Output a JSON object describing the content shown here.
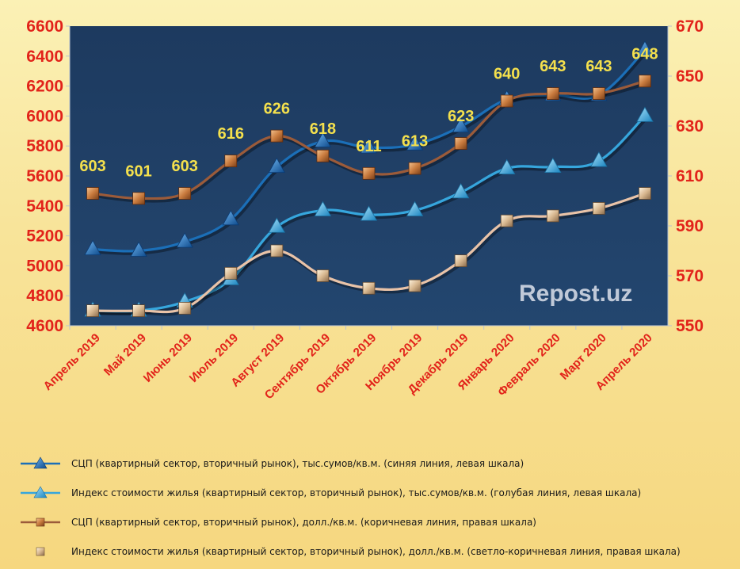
{
  "chart_data": {
    "type": "line",
    "categories": [
      "Апрель 2019",
      "Май 2019",
      "Июнь 2019",
      "Июль 2019",
      "Август 2019",
      "Сентябрь 2019",
      "Октябрь 2019",
      "Ноябрь 2019",
      "Декабрь 2019",
      "Январь 2020",
      "Февраль 2020",
      "Март 2020",
      "Апрель 2020"
    ],
    "left_axis": {
      "min": 4600,
      "max": 6600,
      "step": 200,
      "ticks": [
        "4600",
        "4800",
        "5000",
        "5200",
        "5400",
        "5600",
        "5800",
        "6000",
        "6200",
        "6400",
        "6600"
      ]
    },
    "right_axis": {
      "min": 550,
      "max": 670,
      "step": 20,
      "ticks": [
        "550",
        "570",
        "590",
        "610",
        "630",
        "650",
        "670"
      ]
    },
    "series": [
      {
        "name": "СЦП (квартирный сектор, вторичный рынок), тыс.сумов/кв.м. (синяя линия, левая шкала)",
        "axis": "left",
        "color": "#1b6fb8",
        "marker": "triangle",
        "values": [
          5110,
          5100,
          5160,
          5310,
          5660,
          5830,
          5790,
          5810,
          5930,
          6110,
          6140,
          6140,
          6440
        ]
      },
      {
        "name": "Индекс стоимости жилья (квартирный сектор, вторичный рынок), тыс.сумов/кв.м. (голубая линия, левая шкала)",
        "axis": "left",
        "color": "#36a6dd",
        "marker": "triangle",
        "values": [
          4700,
          4700,
          4760,
          4910,
          5260,
          5370,
          5340,
          5370,
          5490,
          5650,
          5660,
          5700,
          6000
        ]
      },
      {
        "name": "СЦП (квартирный сектор, вторичный рынок), долл./кв.м. (коричневая линия, правая шкала)",
        "axis": "right",
        "color": "#9b5b3a",
        "marker": "square",
        "values": [
          603,
          601,
          603,
          616,
          626,
          618,
          611,
          613,
          623,
          640,
          643,
          643,
          648
        ],
        "labels": [
          "603",
          "601",
          "603",
          "616",
          "626",
          "618",
          "611",
          "613",
          "623",
          "640",
          "643",
          "643",
          "648"
        ]
      },
      {
        "name": "Индекс стоимости жилья (квартирный сектор, вторичный рынок), долл./кв.м. (светло-коричневая линия, правая шкала)",
        "axis": "right",
        "color": "#e9c3a8",
        "marker": "square-light",
        "values": [
          556,
          556,
          557,
          571,
          580,
          570,
          565,
          566,
          576,
          592,
          594,
          597,
          603
        ]
      }
    ],
    "watermark": "Repost.uz",
    "grid": false,
    "legend_position": "bottom"
  },
  "legend": [
    "СЦП (квартирный сектор, вторичный рынок), тыс.сумов/кв.м. (синяя линия, левая шкала)",
    "Индекс стоимости жилья (квартирный сектор, вторичный рынок), тыс.сумов/кв.м. (голубая линия, левая шкала)",
    "СЦП (квартирный сектор, вторичный рынок), долл./кв.м. (коричневая линия, правая шкала)",
    "Индекс стоимости жилья (квартирный сектор, вторичный рынок), долл./кв.м. (светло-коричневая линия, правая шкала)"
  ],
  "colors": {
    "plot_bg": "#1f3c5e",
    "axis_text": "#e2231a",
    "data_label": "#f4e04d"
  }
}
